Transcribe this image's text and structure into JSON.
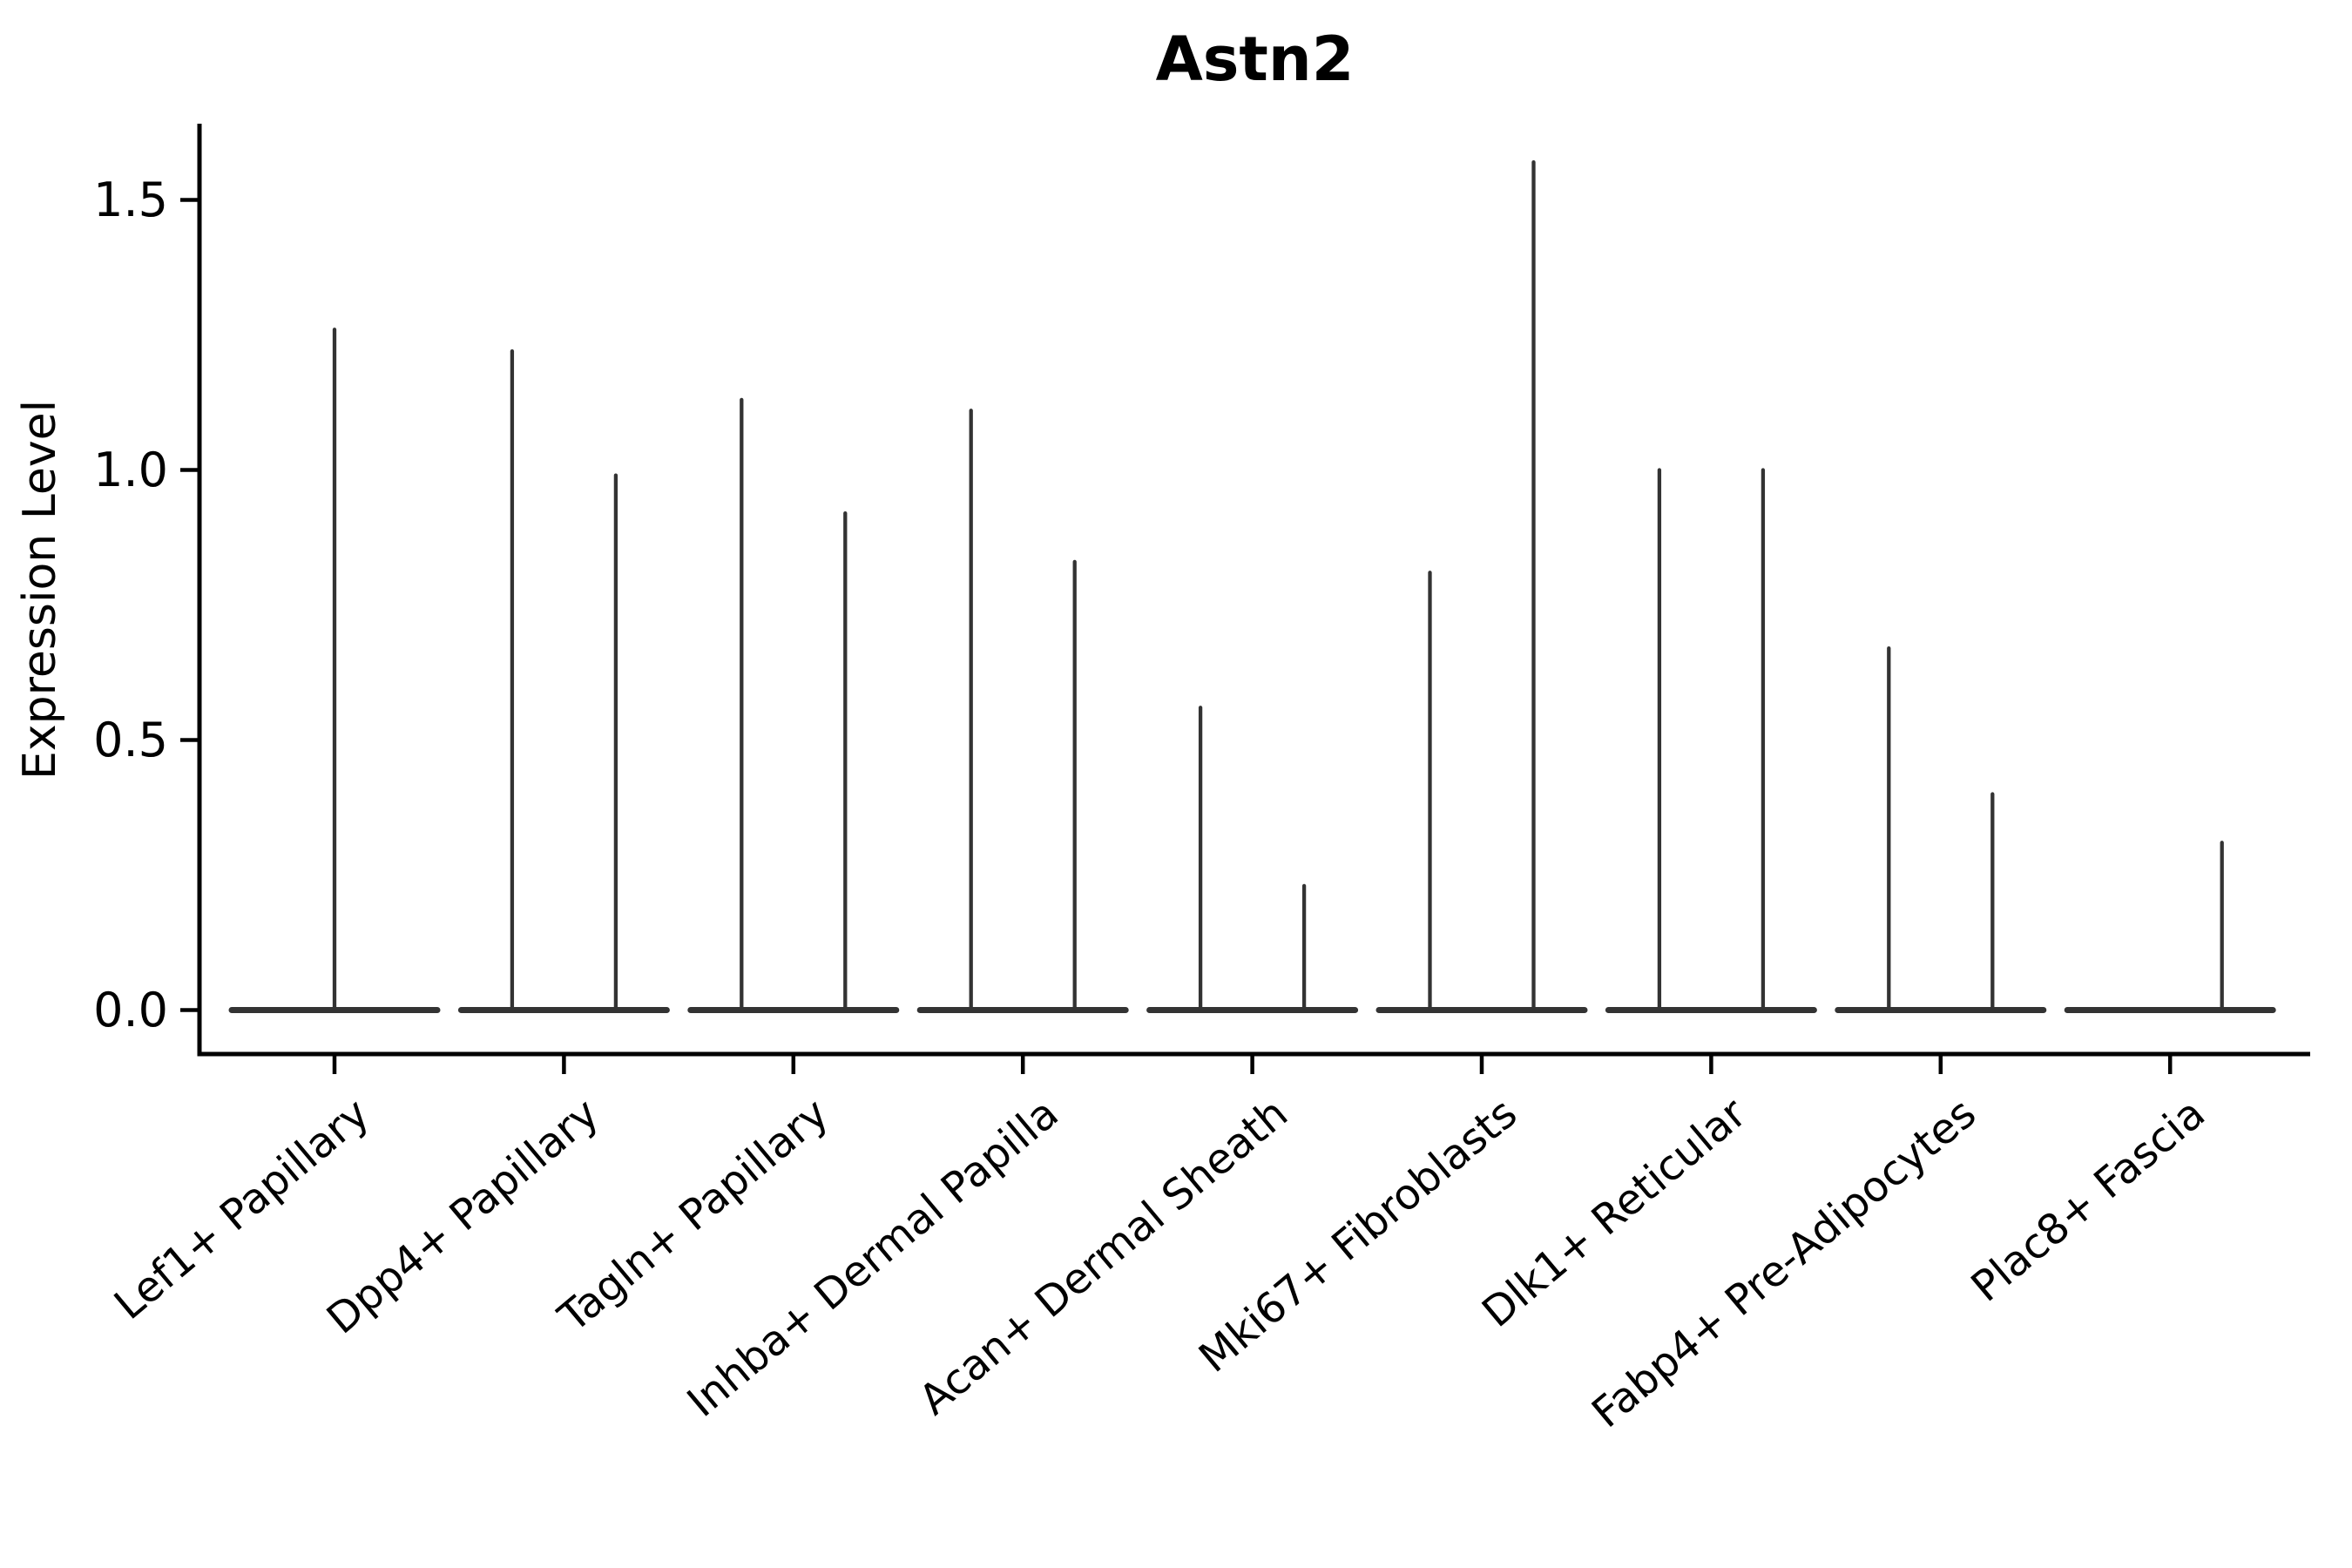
{
  "chart_data": {
    "type": "violin",
    "title": "Astn2",
    "ylabel": "Expression Level",
    "xlabel": "",
    "grid": false,
    "legend": null,
    "ylim": [
      -0.08,
      1.64
    ],
    "ytick_labels": [
      "1.5",
      "1.0",
      "0.5",
      "0.0"
    ],
    "ytick_values": [
      1.5,
      1.0,
      0.5,
      0.0
    ],
    "bulk_value": 0.0,
    "description": "Violin plot of Astn2 expression; each violin is flat at 0 with a thin spike up to its maximum expression value",
    "categories": [
      "Lef1+ Papillary",
      "Dpp4+ Papillary",
      "Tagln+ Papillary",
      "Inhba+ Dermal Papilla",
      "Acan+ Dermal Sheath",
      "Mki67+ Fibroblasts",
      "Dlk1+ Reticular",
      "Fabp4+ Pre-Adipocytes",
      "Plac8+ Fascia"
    ],
    "violins": [
      {
        "category": "Lef1+ Papillary",
        "spikes": [
          {
            "position": "center",
            "max": 1.26
          }
        ]
      },
      {
        "category": "Dpp4+ Papillary",
        "spikes": [
          {
            "position": "left",
            "max": 1.22
          },
          {
            "position": "right",
            "max": 0.99
          }
        ]
      },
      {
        "category": "Tagln+ Papillary",
        "spikes": [
          {
            "position": "left",
            "max": 1.13
          },
          {
            "position": "right",
            "max": 0.92
          }
        ]
      },
      {
        "category": "Inhba+ Dermal Papilla",
        "spikes": [
          {
            "position": "left",
            "max": 1.11
          },
          {
            "position": "right",
            "max": 0.83
          }
        ]
      },
      {
        "category": "Acan+ Dermal Sheath",
        "spikes": [
          {
            "position": "left",
            "max": 0.56
          },
          {
            "position": "right",
            "max": 0.23
          }
        ]
      },
      {
        "category": "Mki67+ Fibroblasts",
        "spikes": [
          {
            "position": "left",
            "max": 0.81
          },
          {
            "position": "right",
            "max": 1.57
          }
        ]
      },
      {
        "category": "Dlk1+ Reticular",
        "spikes": [
          {
            "position": "left",
            "max": 1.0
          },
          {
            "position": "right",
            "max": 1.0
          }
        ]
      },
      {
        "category": "Fabp4+ Pre-Adipocytes",
        "spikes": [
          {
            "position": "left",
            "max": 0.67
          },
          {
            "position": "right",
            "max": 0.4
          }
        ]
      },
      {
        "category": "Plac8+ Fascia",
        "spikes": [
          {
            "position": "left",
            "max": 0.0
          },
          {
            "position": "right",
            "max": 0.31
          }
        ]
      }
    ],
    "colors": {
      "violin_line": "#333333",
      "axis": "#000000",
      "text": "#000000",
      "background": "#ffffff"
    }
  }
}
